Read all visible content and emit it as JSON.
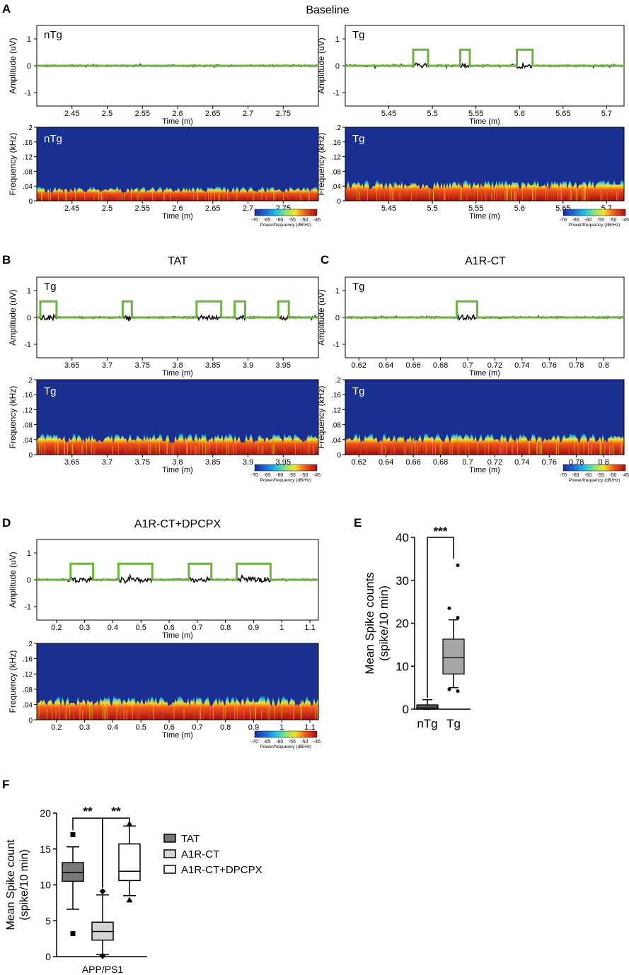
{
  "panels": {
    "A": {
      "letter": "A",
      "title": "Baseline"
    },
    "B": {
      "letter": "B",
      "title": "TAT"
    },
    "C": {
      "letter": "C",
      "title": "A1R-CT"
    },
    "D": {
      "letter": "D",
      "title": "A1R-CT+DPCPX"
    },
    "E": {
      "letter": "E"
    },
    "F": {
      "letter": "F"
    }
  },
  "common": {
    "amp_label": "Amplitude (uV)",
    "freq_label": "Frequency (kHz)",
    "time_label": "Time (m)",
    "power_label": "Power/frequency (dB/Hz)",
    "amp_ticks": [
      "1",
      "0",
      "-1"
    ],
    "freq_ticks": [
      ".2",
      ".16",
      ".12",
      ".08",
      ".04",
      "0"
    ],
    "cbar_ticks": [
      "-70",
      "-65",
      "-60",
      "-55",
      "-50",
      "-45"
    ]
  },
  "colors": {
    "trace": "#111111",
    "square_wave": "#6db33f",
    "spec_bg": "#1a2f8f"
  },
  "chart_data": [
    {
      "id": "A-nTg-trace",
      "type": "line",
      "group_label": "nTg",
      "xlabel": "Time (m)",
      "ylabel": "Amplitude (uV)",
      "ylim": [
        -1.5,
        1.5
      ],
      "xlim": [
        2.4,
        2.8
      ],
      "xticks": [
        "2.45",
        "2.5",
        "2.55",
        "2.6",
        "2.65",
        "2.7",
        "2.75"
      ],
      "spike_windows": []
    },
    {
      "id": "A-Tg-trace",
      "type": "line",
      "group_label": "Tg",
      "xlabel": "Time (m)",
      "ylabel": "Amplitude (uV)",
      "ylim": [
        -1.5,
        1.5
      ],
      "xlim": [
        5.4,
        5.72
      ],
      "xticks": [
        "5.45",
        "5.5",
        "5.55",
        "5.6",
        "5.65",
        "5.7"
      ],
      "spike_windows": [
        [
          5.478,
          5.495
        ],
        [
          5.532,
          5.543
        ],
        [
          5.597,
          5.615
        ]
      ]
    },
    {
      "id": "A-nTg-spec",
      "type": "heatmap",
      "group_label": "nTg",
      "xlabel": "Time (m)",
      "ylabel": "Frequency (kHz)",
      "ylim": [
        0,
        0.2
      ],
      "xlim": [
        2.4,
        2.8
      ],
      "xticks": [
        "2.45",
        "2.5",
        "2.55",
        "2.6",
        "2.65",
        "2.7",
        "2.75"
      ],
      "band_top_khz": 0.035,
      "clim": [
        -70,
        -45
      ]
    },
    {
      "id": "A-Tg-spec",
      "type": "heatmap",
      "group_label": "Tg",
      "xlabel": "Time (m)",
      "ylabel": "Frequency (kHz)",
      "ylim": [
        0,
        0.2
      ],
      "xlim": [
        5.4,
        5.72
      ],
      "xticks": [
        "5.45",
        "5.5",
        "5.55",
        "5.6",
        "5.65",
        "5.7"
      ],
      "band_top_khz": 0.05,
      "clim": [
        -70,
        -45
      ]
    },
    {
      "id": "B-trace",
      "type": "line",
      "group_label": "Tg",
      "xlabel": "Time (m)",
      "ylabel": "Amplitude (uV)",
      "ylim": [
        -1.5,
        1.5
      ],
      "xlim": [
        3.6,
        4.0
      ],
      "xticks": [
        "3.65",
        "3.7",
        "3.75",
        "3.8",
        "3.85",
        "3.9",
        "3.95"
      ],
      "spike_windows": [
        [
          3.605,
          3.628
        ],
        [
          3.722,
          3.735
        ],
        [
          3.827,
          3.862
        ],
        [
          3.881,
          3.896
        ],
        [
          3.943,
          3.958
        ]
      ]
    },
    {
      "id": "B-spec",
      "type": "heatmap",
      "group_label": "Tg",
      "xlabel": "Time (m)",
      "ylabel": "Frequency (kHz)",
      "ylim": [
        0,
        0.2
      ],
      "xlim": [
        3.6,
        4.0
      ],
      "xticks": [
        "3.65",
        "3.7",
        "3.75",
        "3.8",
        "3.85",
        "3.9",
        "3.95"
      ],
      "band_top_khz": 0.05,
      "clim": [
        -70,
        -45
      ]
    },
    {
      "id": "C-trace",
      "type": "line",
      "group_label": "Tg",
      "xlabel": "Time (m)",
      "ylabel": "Amplitude (uV)",
      "ylim": [
        -1.5,
        1.5
      ],
      "xlim": [
        0.61,
        0.815
      ],
      "xticks": [
        "0.62",
        "0.64",
        "0.66",
        "0.68",
        "0.7",
        "0.72",
        "0.74",
        "0.76",
        "0.78",
        "0.8"
      ],
      "spike_windows": [
        [
          0.692,
          0.707
        ]
      ]
    },
    {
      "id": "C-spec",
      "type": "heatmap",
      "group_label": "Tg",
      "xlabel": "Time (m)",
      "ylabel": "Frequency (kHz)",
      "ylim": [
        0,
        0.2
      ],
      "xlim": [
        0.61,
        0.815
      ],
      "xticks": [
        "0.62",
        "0.64",
        "0.66",
        "0.68",
        "0.7",
        "0.72",
        "0.74",
        "0.76",
        "0.78",
        "0.8"
      ],
      "band_top_khz": 0.05,
      "clim": [
        -70,
        -45
      ]
    },
    {
      "id": "D-trace",
      "type": "line",
      "group_label": "",
      "xlabel": "Time (m)",
      "ylabel": "Amplitude (uV)",
      "ylim": [
        -1.5,
        1.5
      ],
      "xlim": [
        0.13,
        1.13
      ],
      "xticks": [
        "0.2",
        "0.3",
        "0.4",
        "0.5",
        "0.6",
        "0.7",
        "0.8",
        "0.9",
        "1",
        "1.1"
      ],
      "spike_windows": [
        [
          0.25,
          0.33
        ],
        [
          0.42,
          0.54
        ],
        [
          0.67,
          0.75
        ],
        [
          0.84,
          0.96
        ]
      ]
    },
    {
      "id": "D-spec",
      "type": "heatmap",
      "group_label": "",
      "xlabel": "Time (m)",
      "ylabel": "Frequency (kHz)",
      "ylim": [
        0,
        0.2
      ],
      "xlim": [
        0.13,
        1.13
      ],
      "xticks": [
        "0.2",
        "0.3",
        "0.4",
        "0.5",
        "0.6",
        "0.7",
        "0.8",
        "0.9",
        "1",
        "1.1"
      ],
      "band_top_khz": 0.055,
      "clim": [
        -70,
        -45
      ]
    },
    {
      "id": "E-box",
      "type": "box",
      "ylabel": "Mean Spike counts\n(spike/10 min)",
      "ylim": [
        0,
        40
      ],
      "yticks": [
        "0",
        "10",
        "20",
        "30",
        "40"
      ],
      "significance": "***",
      "groups": [
        {
          "name": "nTg",
          "min": 0,
          "q1": 0,
          "median": 0.3,
          "q3": 1,
          "max": 2.2,
          "outliers": [],
          "fill": "#555555"
        },
        {
          "name": "Tg",
          "min": 5,
          "q1": 8.2,
          "median": 12,
          "q3": 16.3,
          "max": 20.8,
          "outliers": [
            4.2,
            4.6,
            21.3,
            23.5,
            33.5
          ],
          "fill": "#a6a6a6"
        }
      ]
    },
    {
      "id": "F-box",
      "type": "box",
      "ylabel": "Mean Spike count\n(spike/10 min)",
      "xlabel": "APP/PS1",
      "ylim": [
        0,
        20
      ],
      "yticks": [
        "0",
        "5",
        "10",
        "15",
        "20"
      ],
      "significance": [
        "**",
        "**"
      ],
      "groups": [
        {
          "name": "TAT",
          "min": 6.6,
          "q1": 10.5,
          "median": 11.7,
          "q3": 13.1,
          "max": 15.3,
          "outliers": [
            3.2,
            17.0
          ],
          "marker": "square",
          "fill": "#777777"
        },
        {
          "name": "A1R-CT",
          "min": 0.3,
          "q1": 2.3,
          "median": 3.5,
          "q3": 4.8,
          "max": 8.6,
          "outliers": [
            0.1,
            9.1
          ],
          "marker": "diamond",
          "fill": "#d5d5d5"
        },
        {
          "name": "A1R-CT+DPCPX",
          "min": 8.5,
          "q1": 10.6,
          "median": 11.9,
          "q3": 15.7,
          "max": 18.2,
          "outliers": [
            7.9,
            18.5
          ],
          "marker": "triangle",
          "fill": "#ffffff"
        }
      ]
    }
  ]
}
